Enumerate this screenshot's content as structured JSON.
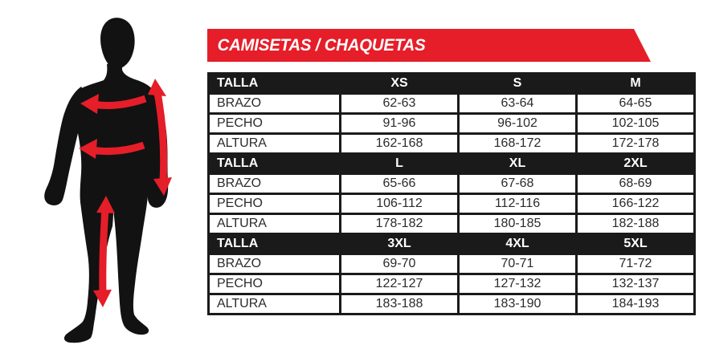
{
  "banner": {
    "title": "CAMISETAS / CHAQUETAS"
  },
  "figure": {
    "icon": "human-body-silhouette",
    "arrows": [
      {
        "name": "chest-measure-arrow",
        "meaning": "PECHO"
      },
      {
        "name": "arm-length-measure-arrow",
        "meaning": "BRAZO"
      },
      {
        "name": "waist-measure-arrow",
        "meaning": "PECHO"
      },
      {
        "name": "inseam-measure-arrow",
        "meaning": "ALTURA"
      }
    ]
  },
  "table": {
    "sections": [
      {
        "header": {
          "label": "TALLA",
          "sizes": [
            "XS",
            "S",
            "M"
          ]
        },
        "rows": [
          {
            "label": "BRAZO",
            "values": [
              "62-63",
              "63-64",
              "64-65"
            ]
          },
          {
            "label": "PECHO",
            "values": [
              "91-96",
              "96-102",
              "102-105"
            ]
          },
          {
            "label": "ALTURA",
            "values": [
              "162-168",
              "168-172",
              "172-178"
            ]
          }
        ]
      },
      {
        "header": {
          "label": "TALLA",
          "sizes": [
            "L",
            "XL",
            "2XL"
          ]
        },
        "rows": [
          {
            "label": "BRAZO",
            "values": [
              "65-66",
              "67-68",
              "68-69"
            ]
          },
          {
            "label": "PECHO",
            "values": [
              "106-112",
              "112-116",
              "166-122"
            ]
          },
          {
            "label": "ALTURA",
            "values": [
              "178-182",
              "180-185",
              "182-188"
            ]
          }
        ]
      },
      {
        "header": {
          "label": "TALLA",
          "sizes": [
            "3XL",
            "4XL",
            "5XL"
          ]
        },
        "rows": [
          {
            "label": "BRAZO",
            "values": [
              "69-70",
              "70-71",
              "71-72"
            ]
          },
          {
            "label": "PECHO",
            "values": [
              "122-127",
              "127-132",
              "132-137"
            ]
          },
          {
            "label": "ALTURA",
            "values": [
              "183-188",
              "183-190",
              "184-193"
            ]
          }
        ]
      }
    ]
  },
  "colors": {
    "accent_red": "#e51e29",
    "table_black": "#1a1a1a",
    "body_black": "#121212",
    "text": "#2b2b2b"
  }
}
